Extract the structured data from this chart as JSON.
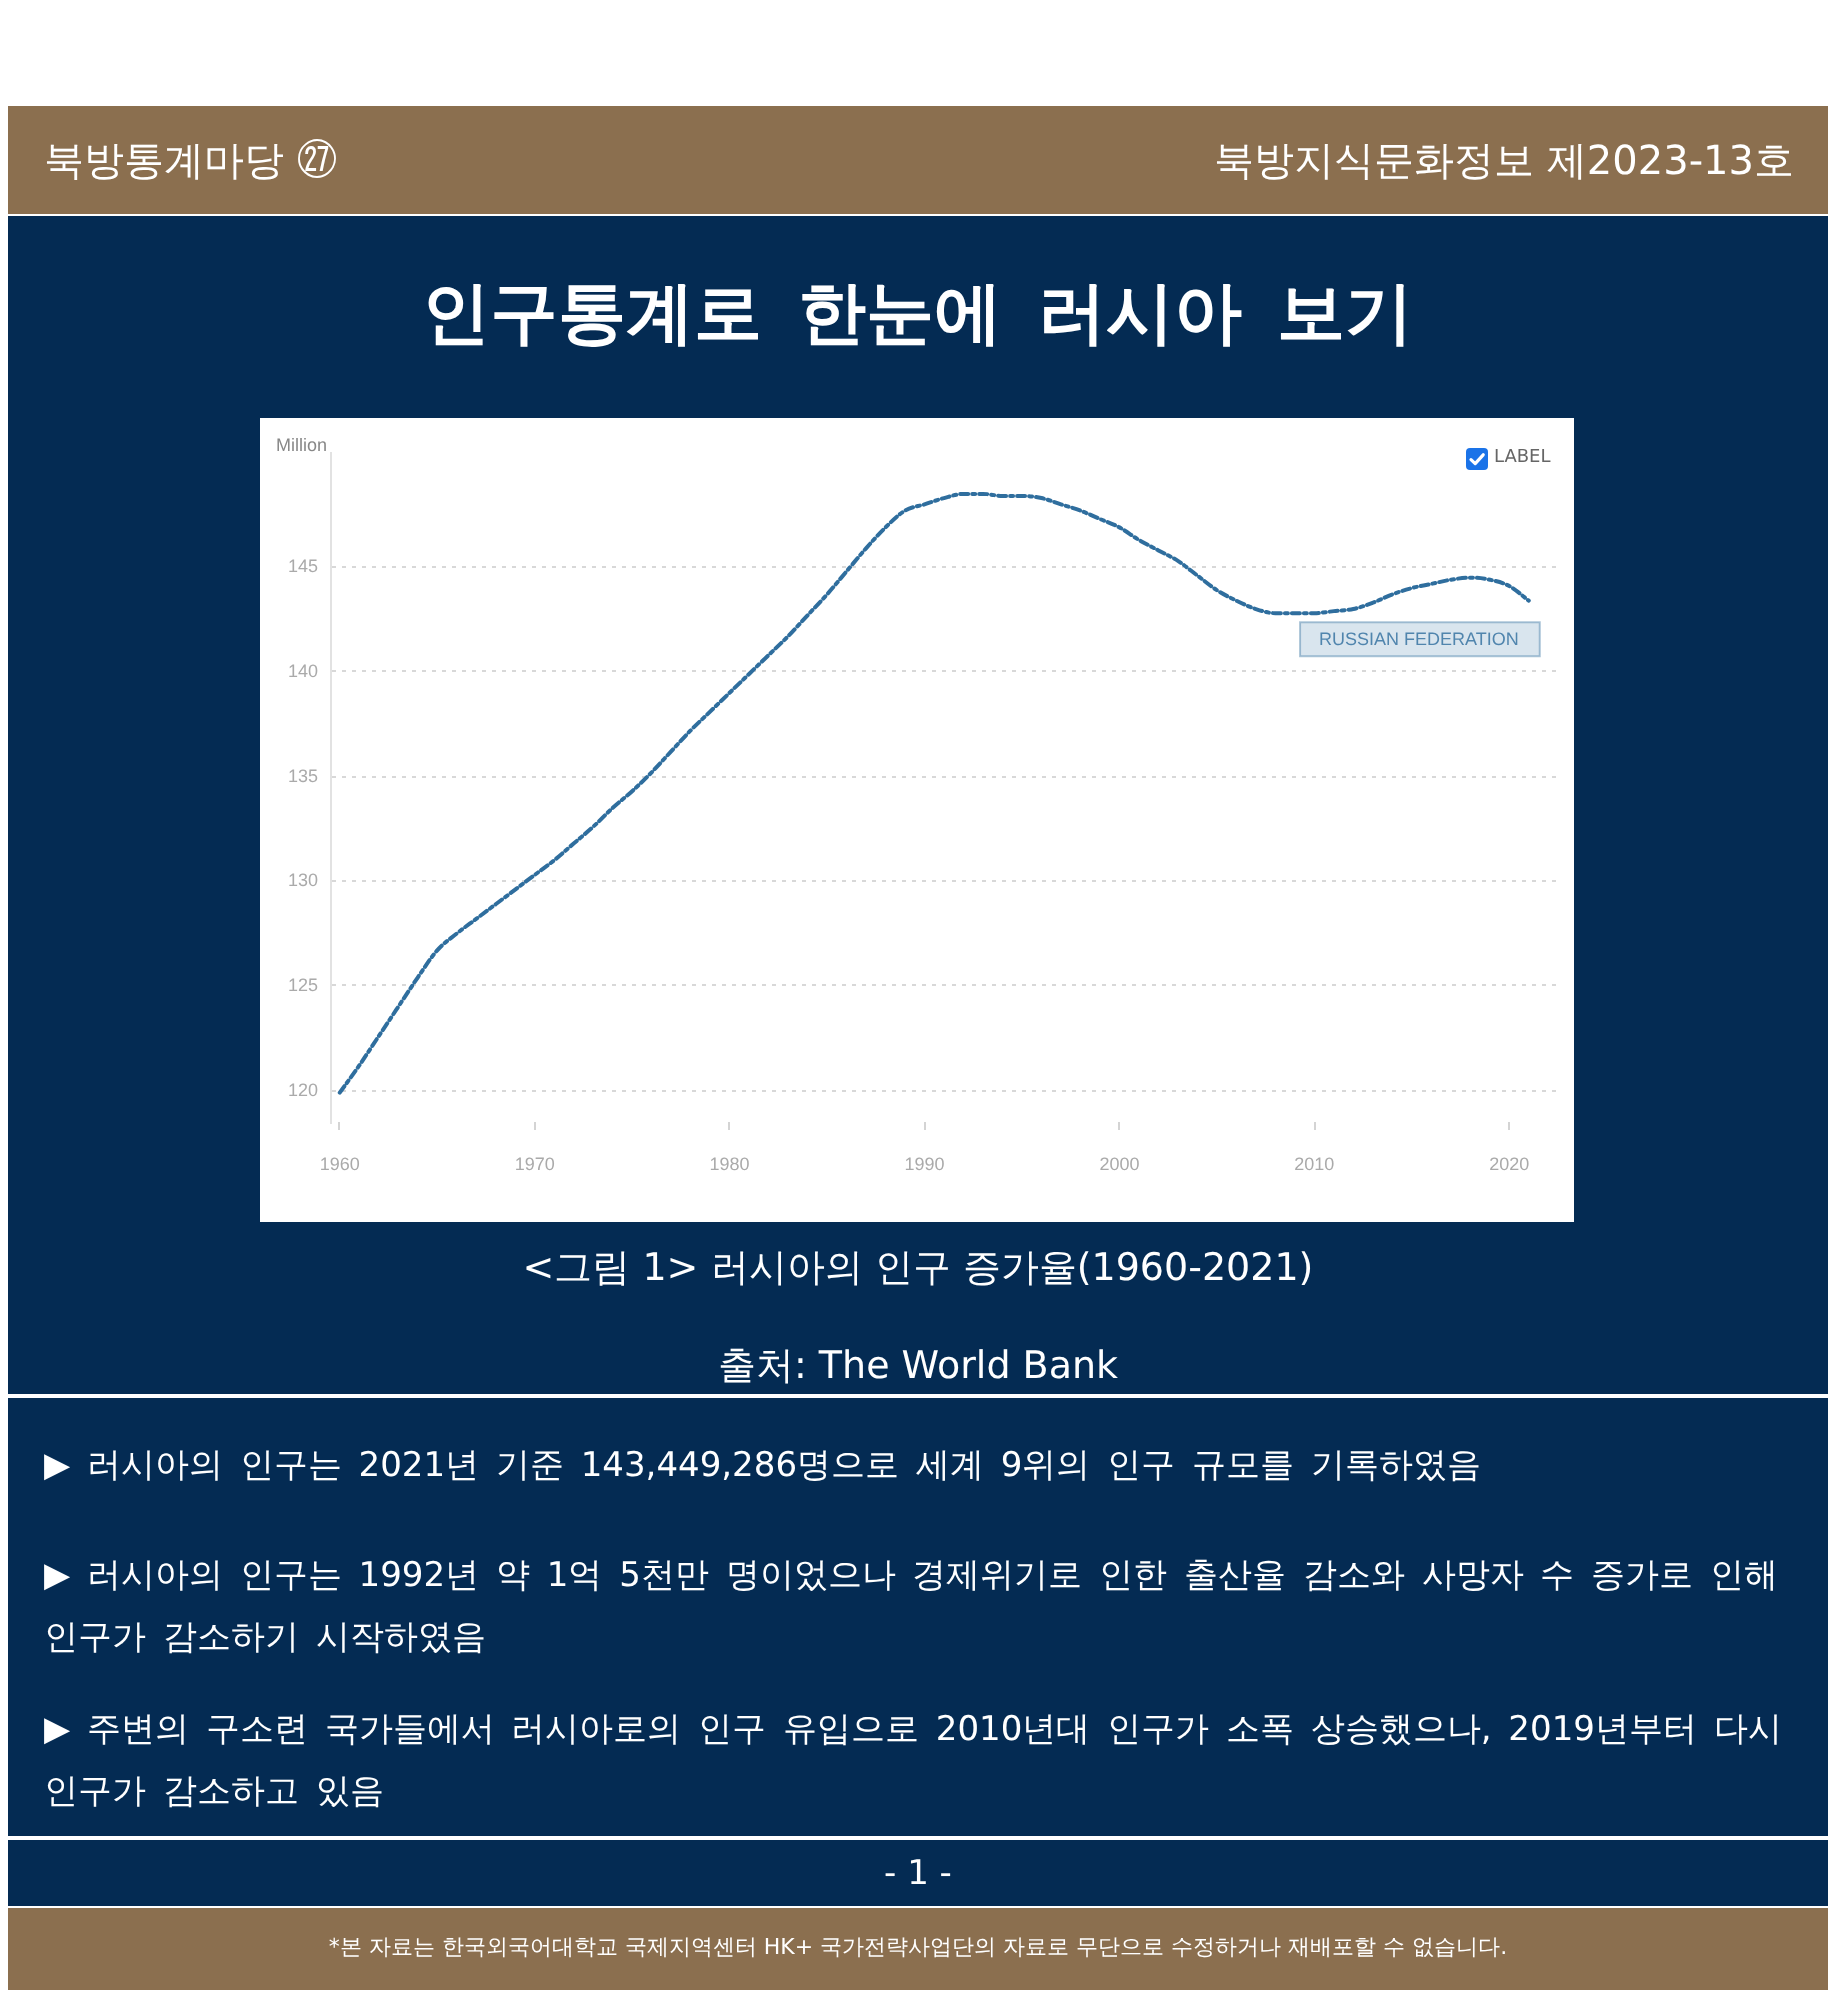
{
  "chart_data": {
    "type": "line",
    "title": "인구통계로 한눈에 러시아 보기",
    "ylabel": "Million",
    "x": [
      1960,
      1961,
      1962,
      1963,
      1964,
      1965,
      1966,
      1967,
      1968,
      1969,
      1970,
      1971,
      1972,
      1973,
      1974,
      1975,
      1976,
      1977,
      1978,
      1979,
      1980,
      1981,
      1982,
      1983,
      1984,
      1985,
      1986,
      1987,
      1988,
      1989,
      1990,
      1991,
      1992,
      1993,
      1994,
      1995,
      1996,
      1997,
      1998,
      1999,
      2000,
      2001,
      2002,
      2003,
      2004,
      2005,
      2006,
      2007,
      2008,
      2009,
      2010,
      2011,
      2012,
      2013,
      2014,
      2015,
      2016,
      2017,
      2018,
      2019,
      2020,
      2021
    ],
    "series": [
      {
        "name": "RUSSIAN FEDERATION",
        "color": "#2f6e9e",
        "values": [
          119.9,
          121.2,
          122.6,
          124.0,
          125.4,
          126.7,
          127.5,
          128.2,
          128.9,
          129.6,
          130.3,
          131.0,
          131.8,
          132.6,
          133.5,
          134.3,
          135.2,
          136.2,
          137.2,
          138.1,
          139.0,
          139.9,
          140.8,
          141.7,
          142.7,
          143.7,
          144.8,
          145.9,
          146.9,
          147.7,
          148.0,
          148.3,
          148.5,
          148.5,
          148.4,
          148.4,
          148.3,
          148.0,
          147.7,
          147.3,
          146.9,
          146.3,
          145.8,
          145.3,
          144.6,
          143.9,
          143.4,
          143.0,
          142.8,
          142.8,
          142.8,
          142.9,
          143.0,
          143.3,
          143.7,
          144.0,
          144.2,
          144.4,
          144.5,
          144.4,
          144.1,
          143.4
        ]
      }
    ],
    "xlim": [
      1959.5,
      2022.5
    ],
    "xticks": [
      1960,
      1970,
      1980,
      1990,
      2000,
      2010,
      2020
    ],
    "ylim": [
      118.5,
      150.5
    ],
    "yticks": [
      120,
      125,
      130,
      135,
      140,
      145
    ],
    "grid": "y",
    "line_style": "dashed",
    "annotations": [
      "북방통계마당 ㉗",
      "북방지식문화정보 제2023-13호",
      "<그림 1> 러시아의 인구 증가율(1960-2021)",
      "출처: The World Bank",
      "▶ 러시아의 인구는 2021년 기준 143,449,286명으로 세계 9위의 인구 규모를 기록하였음",
      "▶ 러시아의 인구는 1992년 약 1억 5천만 명이었으나 경제위기로 인한 출산율 감소와 사망자 수 증가로 인해 인구가 감소하기 시작하였음",
      "▶ 주변의 구소련 국가들에서 러시아로의 인구 유입으로 2010년대 인구가 소폭 상승했으나, 2019년부터 다시 인구가 감소하고 있음",
      "- 1 -",
      "*본 자료는 한국외국어대학교 국제지역센터 HK+ 국가전략사업단의 자료로 무단으로 수정하거나 재배포할 수 없습니다.",
      "LABEL"
    ]
  }
}
